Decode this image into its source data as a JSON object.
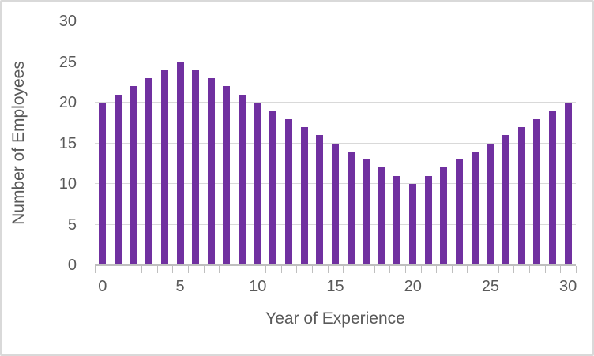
{
  "chart_data": {
    "type": "bar",
    "title": "",
    "xlabel": "Year of Experience",
    "ylabel": "Number of Employees",
    "x": [
      0,
      1,
      2,
      3,
      4,
      5,
      6,
      7,
      8,
      9,
      10,
      11,
      12,
      13,
      14,
      15,
      16,
      17,
      18,
      19,
      20,
      21,
      22,
      23,
      24,
      25,
      26,
      27,
      28,
      29,
      30
    ],
    "values": [
      20,
      21,
      22,
      23,
      24,
      25,
      24,
      23,
      22,
      21,
      20,
      19,
      18,
      17,
      16,
      15,
      14,
      13,
      12,
      11,
      10,
      11,
      12,
      13,
      14,
      15,
      16,
      17,
      18,
      19,
      20
    ],
    "ylim": [
      0,
      30
    ],
    "yticks": [
      0,
      5,
      10,
      15,
      20,
      25,
      30
    ],
    "xticks": [
      0,
      5,
      10,
      15,
      20,
      25,
      30
    ],
    "grid": true,
    "legend": false,
    "bar_color": "#7030A0",
    "gridline_color": "#D9D9D9",
    "axis_color": "#BFBFBF",
    "text_color": "#595959",
    "border_color": "#D9D9D9",
    "background": "#FFFFFF"
  }
}
